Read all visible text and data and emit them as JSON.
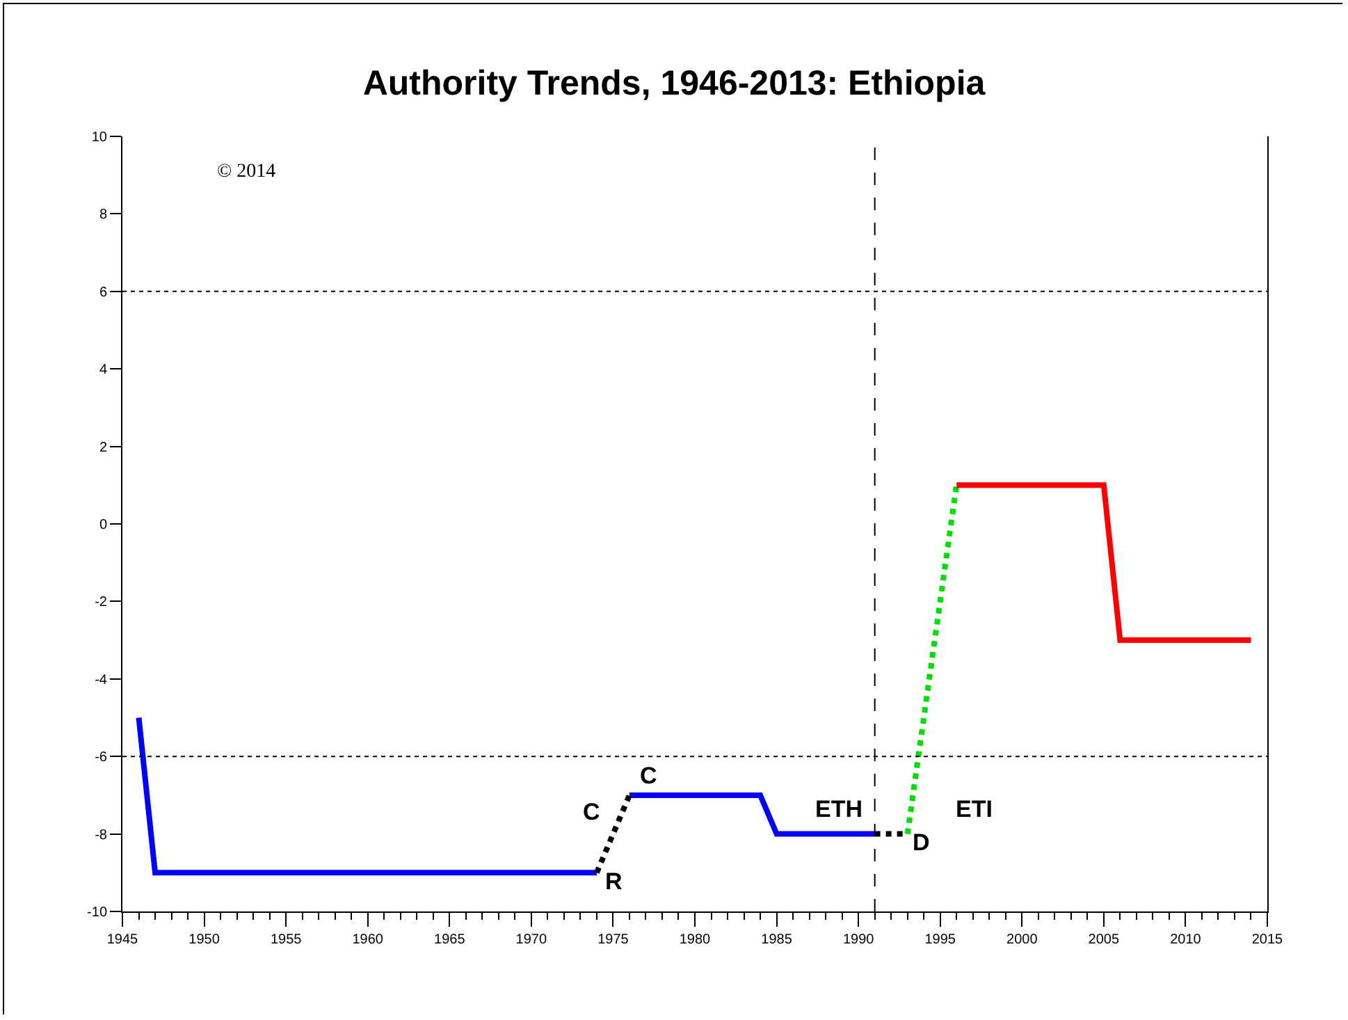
{
  "chart_data": {
    "type": "line",
    "title": "Authority Trends, 1946-2013: Ethiopia",
    "xlim": [
      1945,
      2015
    ],
    "xticks": [
      1945,
      1950,
      1955,
      1960,
      1965,
      1970,
      1975,
      1980,
      1985,
      1990,
      1995,
      2000,
      2005,
      2010,
      2015
    ],
    "ylim": [
      -10,
      10
    ],
    "yticks": [
      -10,
      -8,
      -6,
      -4,
      -2,
      0,
      2,
      4,
      6,
      8,
      10
    ],
    "grid": false,
    "marker": "none",
    "series": [
      {
        "color": "#0000ff",
        "line_style": "solid",
        "x": [
          1946,
          1947,
          1974,
          1975,
          1976,
          1984,
          1985,
          1991
        ],
        "values": [
          -5,
          -9,
          -9,
          null,
          -7,
          -7,
          -8,
          -8
        ]
      },
      {
        "color": "#000000",
        "line_style": "dotted",
        "x": [
          1974,
          1976,
          1983,
          1991,
          1993
        ],
        "values": [
          -9,
          -7,
          null,
          -8,
          -8
        ]
      },
      {
        "color": "#00dd00",
        "line_style": "dotted",
        "x": [
          1993,
          1996
        ],
        "values": [
          -8,
          1
        ]
      },
      {
        "color": "#ff0000",
        "line_style": "solid",
        "x": [
          1996,
          2005,
          2006,
          2014
        ],
        "values": [
          1,
          1,
          -3,
          -3
        ]
      }
    ],
    "ref_lines": [
      {
        "axis": "y",
        "value": 6,
        "color": "#000000",
        "line_style": "dotted"
      },
      {
        "axis": "y",
        "value": -6,
        "color": "#000000",
        "line_style": "dotted"
      },
      {
        "axis": "x",
        "value": 1991,
        "color": "#000000",
        "line_style": "dashed"
      }
    ],
    "annotations": [
      {
        "text": "R",
        "x": 1974,
        "y": -9
      },
      {
        "text": "C",
        "x": 1975,
        "y": -8
      },
      {
        "text": "C",
        "x": 1976,
        "y": -7
      },
      {
        "text": "ETH",
        "x": 1991,
        "y": -8
      },
      {
        "text": "D",
        "x": 1993,
        "y": -8
      },
      {
        "text": "ETI",
        "x": 1993,
        "y": -8
      },
      "© 2014"
    ]
  }
}
